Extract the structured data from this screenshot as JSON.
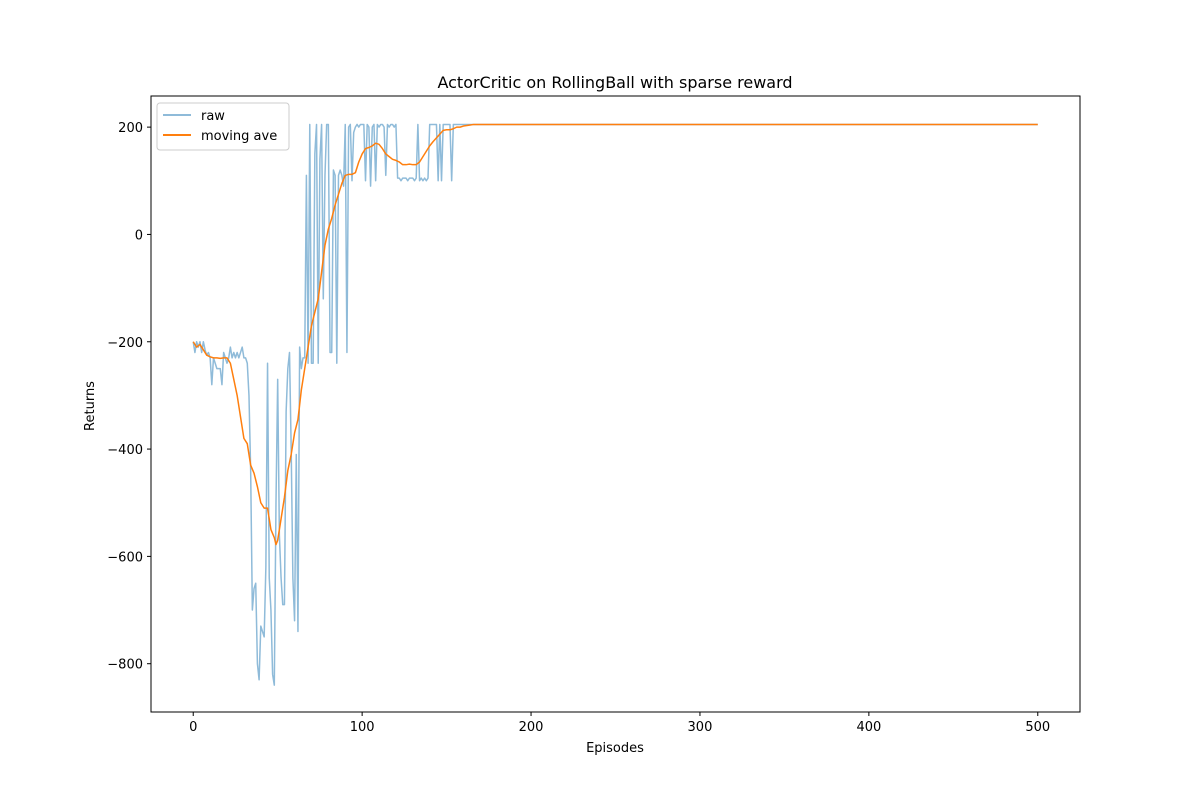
{
  "chart_data": {
    "type": "line",
    "title": "ActorCritic on RollingBall with sparse reward",
    "xlabel": "Episodes",
    "ylabel": "Returns",
    "xlim": [
      -25,
      525
    ],
    "ylim": [
      -890,
      258
    ],
    "xticks": [
      0,
      100,
      200,
      300,
      400,
      500
    ],
    "yticks": [
      -800,
      -600,
      -400,
      -200,
      0,
      200
    ],
    "ytick_labels": [
      "−800",
      "−600",
      "−400",
      "−200",
      "0",
      "200"
    ],
    "grid": false,
    "legend": {
      "placement": "top-left",
      "entries": [
        "raw",
        "moving ave"
      ]
    },
    "series": [
      {
        "name": "raw",
        "color": "#1f77b4",
        "opacity": 0.5,
        "points": [
          [
            0,
            -200
          ],
          [
            1,
            -220
          ],
          [
            2,
            -200
          ],
          [
            3,
            -210
          ],
          [
            4,
            -200
          ],
          [
            5,
            -220
          ],
          [
            6,
            -200
          ],
          [
            7,
            -215
          ],
          [
            8,
            -225
          ],
          [
            9,
            -220
          ],
          [
            10,
            -230
          ],
          [
            11,
            -280
          ],
          [
            12,
            -230
          ],
          [
            13,
            -240
          ],
          [
            14,
            -250
          ],
          [
            15,
            -250
          ],
          [
            16,
            -250
          ],
          [
            17,
            -280
          ],
          [
            18,
            -220
          ],
          [
            19,
            -230
          ],
          [
            20,
            -240
          ],
          [
            21,
            -230
          ],
          [
            22,
            -210
          ],
          [
            23,
            -230
          ],
          [
            24,
            -220
          ],
          [
            25,
            -230
          ],
          [
            26,
            -220
          ],
          [
            27,
            -230
          ],
          [
            28,
            -220
          ],
          [
            29,
            -210
          ],
          [
            30,
            -230
          ],
          [
            31,
            -230
          ],
          [
            32,
            -240
          ],
          [
            33,
            -300
          ],
          [
            34,
            -440
          ],
          [
            35,
            -700
          ],
          [
            36,
            -660
          ],
          [
            37,
            -650
          ],
          [
            38,
            -800
          ],
          [
            39,
            -830
          ],
          [
            40,
            -730
          ],
          [
            41,
            -740
          ],
          [
            42,
            -750
          ],
          [
            43,
            -620
          ],
          [
            44,
            -240
          ],
          [
            45,
            -640
          ],
          [
            46,
            -700
          ],
          [
            47,
            -820
          ],
          [
            48,
            -840
          ],
          [
            49,
            -500
          ],
          [
            50,
            -270
          ],
          [
            51,
            -560
          ],
          [
            52,
            -640
          ],
          [
            53,
            -690
          ],
          [
            54,
            -690
          ],
          [
            55,
            -330
          ],
          [
            56,
            -250
          ],
          [
            57,
            -220
          ],
          [
            58,
            -400
          ],
          [
            59,
            -640
          ],
          [
            60,
            -720
          ],
          [
            61,
            -410
          ],
          [
            62,
            -740
          ],
          [
            63,
            -210
          ],
          [
            64,
            -250
          ],
          [
            65,
            -230
          ],
          [
            66,
            -230
          ],
          [
            67,
            110
          ],
          [
            68,
            -240
          ],
          [
            69,
            205
          ],
          [
            70,
            -240
          ],
          [
            71,
            -240
          ],
          [
            72,
            150
          ],
          [
            73,
            205
          ],
          [
            74,
            -240
          ],
          [
            75,
            140
          ],
          [
            76,
            205
          ],
          [
            77,
            -120
          ],
          [
            78,
            110
          ],
          [
            79,
            205
          ],
          [
            80,
            205
          ],
          [
            81,
            -220
          ],
          [
            82,
            -220
          ],
          [
            83,
            120
          ],
          [
            84,
            110
          ],
          [
            85,
            -240
          ],
          [
            86,
            110
          ],
          [
            87,
            120
          ],
          [
            88,
            110
          ],
          [
            89,
            90
          ],
          [
            90,
            205
          ],
          [
            91,
            -220
          ],
          [
            92,
            200
          ],
          [
            93,
            205
          ],
          [
            94,
            100
          ],
          [
            95,
            190
          ],
          [
            96,
            200
          ],
          [
            97,
            205
          ],
          [
            98,
            200
          ],
          [
            99,
            205
          ],
          [
            100,
            205
          ],
          [
            101,
            205
          ],
          [
            102,
            100
          ],
          [
            103,
            205
          ],
          [
            104,
            200
          ],
          [
            105,
            90
          ],
          [
            106,
            200
          ],
          [
            107,
            205
          ],
          [
            108,
            100
          ],
          [
            109,
            205
          ],
          [
            110,
            200
          ],
          [
            111,
            205
          ],
          [
            112,
            205
          ],
          [
            113,
            200
          ],
          [
            114,
            110
          ],
          [
            115,
            205
          ],
          [
            116,
            200
          ],
          [
            117,
            205
          ],
          [
            118,
            205
          ],
          [
            119,
            200
          ],
          [
            120,
            205
          ],
          [
            121,
            105
          ],
          [
            122,
            105
          ],
          [
            123,
            100
          ],
          [
            124,
            105
          ],
          [
            125,
            105
          ],
          [
            126,
            105
          ],
          [
            127,
            100
          ],
          [
            128,
            105
          ],
          [
            129,
            105
          ],
          [
            130,
            105
          ],
          [
            131,
            100
          ],
          [
            132,
            105
          ],
          [
            133,
            205
          ],
          [
            134,
            100
          ],
          [
            135,
            105
          ],
          [
            136,
            100
          ],
          [
            137,
            105
          ],
          [
            138,
            100
          ],
          [
            139,
            105
          ],
          [
            140,
            205
          ],
          [
            141,
            205
          ],
          [
            142,
            205
          ],
          [
            143,
            205
          ],
          [
            144,
            205
          ],
          [
            145,
            100
          ],
          [
            146,
            205
          ],
          [
            147,
            100
          ],
          [
            148,
            205
          ],
          [
            149,
            205
          ],
          [
            150,
            205
          ],
          [
            151,
            205
          ],
          [
            152,
            205
          ],
          [
            153,
            100
          ],
          [
            154,
            205
          ],
          [
            155,
            205
          ],
          [
            156,
            205
          ],
          [
            157,
            205
          ],
          [
            158,
            205
          ],
          [
            159,
            205
          ],
          [
            160,
            205
          ],
          [
            161,
            205
          ],
          [
            162,
            205
          ],
          [
            163,
            205
          ],
          [
            164,
            205
          ],
          [
            165,
            205
          ],
          [
            166,
            205
          ],
          [
            167,
            205
          ],
          [
            168,
            205
          ],
          [
            169,
            205
          ],
          [
            170,
            205
          ],
          [
            171,
            205
          ],
          [
            172,
            205
          ],
          [
            173,
            205
          ],
          [
            174,
            205
          ],
          [
            175,
            205
          ],
          [
            176,
            205
          ],
          [
            177,
            205
          ],
          [
            178,
            205
          ],
          [
            179,
            205
          ],
          [
            180,
            205
          ],
          [
            500,
            205
          ]
        ]
      },
      {
        "name": "moving ave",
        "color": "#ff7f0e",
        "opacity": 1,
        "points": [
          [
            0,
            -200
          ],
          [
            2,
            -210
          ],
          [
            4,
            -205
          ],
          [
            6,
            -215
          ],
          [
            8,
            -225
          ],
          [
            10,
            -228
          ],
          [
            12,
            -230
          ],
          [
            14,
            -230
          ],
          [
            16,
            -231
          ],
          [
            18,
            -230
          ],
          [
            20,
            -230
          ],
          [
            22,
            -240
          ],
          [
            24,
            -270
          ],
          [
            26,
            -300
          ],
          [
            28,
            -340
          ],
          [
            30,
            -380
          ],
          [
            32,
            -390
          ],
          [
            34,
            -430
          ],
          [
            36,
            -445
          ],
          [
            38,
            -470
          ],
          [
            40,
            -500
          ],
          [
            42,
            -510
          ],
          [
            44,
            -510
          ],
          [
            46,
            -550
          ],
          [
            48,
            -565
          ],
          [
            49,
            -578
          ],
          [
            50,
            -570
          ],
          [
            52,
            -530
          ],
          [
            54,
            -490
          ],
          [
            56,
            -440
          ],
          [
            58,
            -410
          ],
          [
            60,
            -370
          ],
          [
            62,
            -345
          ],
          [
            64,
            -290
          ],
          [
            66,
            -250
          ],
          [
            68,
            -210
          ],
          [
            70,
            -170
          ],
          [
            72,
            -145
          ],
          [
            74,
            -120
          ],
          [
            76,
            -70
          ],
          [
            78,
            -20
          ],
          [
            80,
            10
          ],
          [
            82,
            30
          ],
          [
            84,
            55
          ],
          [
            86,
            75
          ],
          [
            88,
            95
          ],
          [
            90,
            110
          ],
          [
            92,
            112
          ],
          [
            94,
            112
          ],
          [
            96,
            115
          ],
          [
            98,
            135
          ],
          [
            100,
            150
          ],
          [
            102,
            160
          ],
          [
            104,
            162
          ],
          [
            106,
            165
          ],
          [
            108,
            170
          ],
          [
            110,
            168
          ],
          [
            112,
            160
          ],
          [
            114,
            150
          ],
          [
            116,
            145
          ],
          [
            118,
            140
          ],
          [
            120,
            138
          ],
          [
            122,
            135
          ],
          [
            124,
            130
          ],
          [
            126,
            130
          ],
          [
            128,
            131
          ],
          [
            130,
            130
          ],
          [
            132,
            130
          ],
          [
            134,
            135
          ],
          [
            136,
            145
          ],
          [
            138,
            155
          ],
          [
            140,
            165
          ],
          [
            142,
            173
          ],
          [
            144,
            180
          ],
          [
            146,
            187
          ],
          [
            148,
            194
          ],
          [
            150,
            195
          ],
          [
            152,
            195
          ],
          [
            154,
            197
          ],
          [
            156,
            200
          ],
          [
            158,
            200
          ],
          [
            160,
            202
          ],
          [
            162,
            203
          ],
          [
            164,
            204
          ],
          [
            166,
            205
          ],
          [
            170,
            205
          ],
          [
            500,
            205
          ]
        ]
      }
    ]
  }
}
